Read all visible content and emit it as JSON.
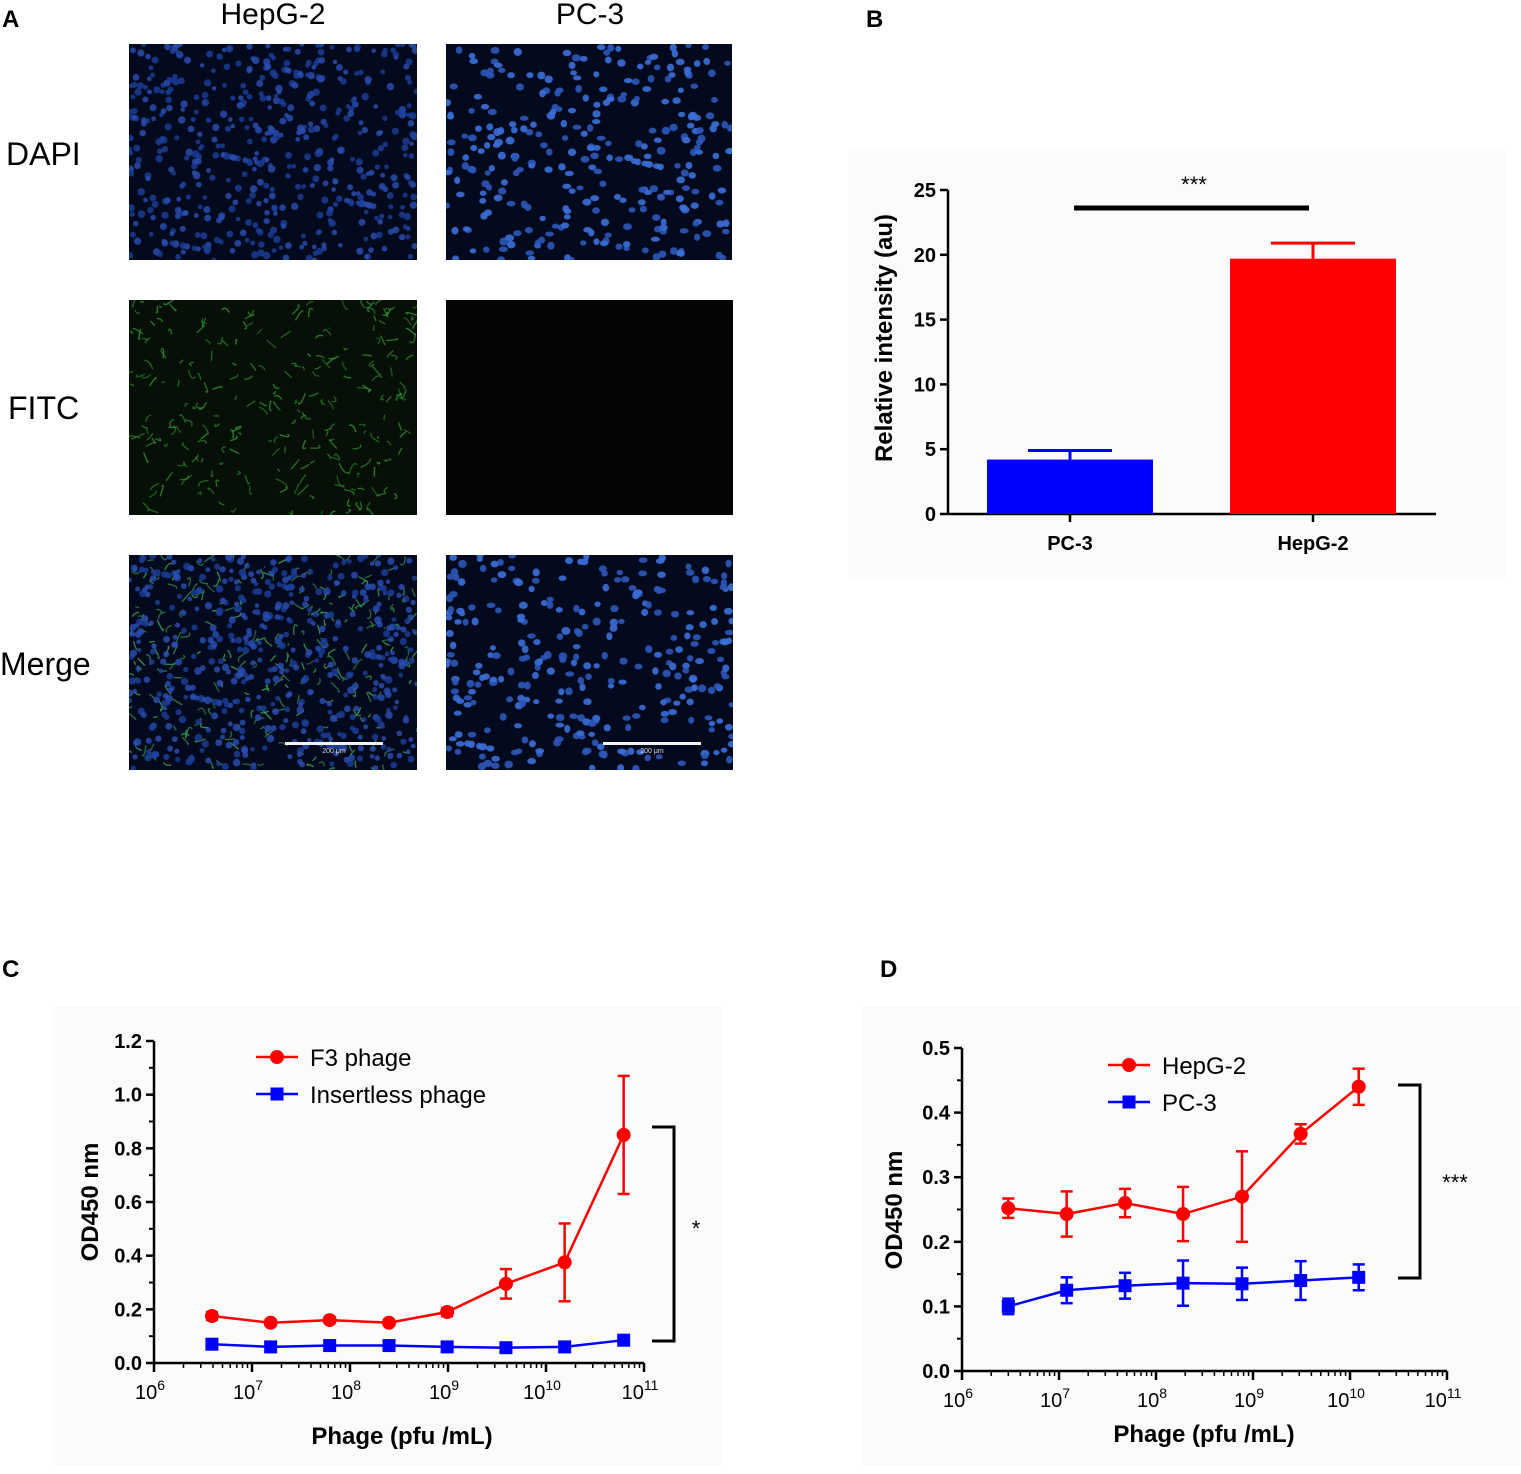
{
  "panels": {
    "a": {
      "letter": "A",
      "columns": [
        "HepG-2",
        "PC-3"
      ],
      "rows": [
        "DAPI",
        "FITC",
        "Merge"
      ],
      "scale_bar_text": "200 μm"
    },
    "b": {
      "letter": "B"
    },
    "c": {
      "letter": "C"
    },
    "d": {
      "letter": "D"
    }
  },
  "colors": {
    "red": "#ff0000",
    "blue": "#0000ff",
    "dapi": "#1b3f9a",
    "fitc": "#2f8f2f"
  },
  "chart_data": [
    {
      "id": "B",
      "type": "bar",
      "categories": [
        "PC-3",
        "HepG-2"
      ],
      "values": [
        4.2,
        19.7
      ],
      "errors": [
        0.7,
        1.2
      ],
      "colors": [
        "#0000ff",
        "#ff0000"
      ],
      "ylabel": "Relative intensity (au)",
      "ylim": [
        0,
        25
      ],
      "yticks": [
        0,
        5,
        10,
        15,
        20,
        25
      ],
      "significance": "***"
    },
    {
      "id": "C",
      "type": "line",
      "xscale": "log",
      "xlabel": "Phage (pfu /mL)",
      "ylabel": "OD450 nm",
      "xticks": [
        "10^6",
        "10^7",
        "10^8",
        "10^9",
        "10^10",
        "10^11"
      ],
      "ylim": [
        0,
        1.2
      ],
      "yticks": [
        "0.0",
        "0.2",
        "0.4",
        "0.6",
        "0.8",
        "1.0",
        "1.2"
      ],
      "legend_position": "top-left",
      "significance": "*",
      "series": [
        {
          "name": "F3 phage",
          "marker": "circle",
          "color": "#ff0000",
          "x": [
            3900000.0,
            15500000.0,
            62000000.0,
            250000000.0,
            980000000.0,
            3900000000.0,
            15500000000.0,
            62000000000.0
          ],
          "y": [
            0.175,
            0.15,
            0.16,
            0.15,
            0.19,
            0.295,
            0.375,
            0.85
          ],
          "err": [
            0.015,
            0.01,
            0.01,
            0.01,
            0.015,
            0.055,
            0.145,
            0.22
          ]
        },
        {
          "name": "Insertless phage",
          "marker": "square",
          "color": "#0000ff",
          "x": [
            3900000.0,
            15500000.0,
            62000000.0,
            250000000.0,
            980000000.0,
            3900000000.0,
            15500000000.0,
            62000000000.0
          ],
          "y": [
            0.07,
            0.06,
            0.065,
            0.065,
            0.06,
            0.057,
            0.06,
            0.085
          ],
          "err": [
            0.01,
            0.008,
            0.008,
            0.008,
            0.008,
            0.008,
            0.01,
            0.015
          ]
        }
      ]
    },
    {
      "id": "D",
      "type": "line",
      "xscale": "log",
      "xlabel": "Phage (pfu /mL)",
      "ylabel": "OD450 nm",
      "xticks": [
        "10^6",
        "10^7",
        "10^8",
        "10^9",
        "10^10",
        "10^11"
      ],
      "ylim": [
        0,
        0.5
      ],
      "yticks": [
        "0.0",
        "0.1",
        "0.2",
        "0.3",
        "0.4",
        "0.5"
      ],
      "legend_position": "top-left",
      "significance": "***",
      "series": [
        {
          "name": "HepG-2",
          "marker": "circle",
          "color": "#ff0000",
          "x": [
            3000000.0,
            12000000.0,
            48000000.0,
            190000000.0,
            770000000.0,
            3100000000.0,
            12300000000.0
          ],
          "y": [
            0.252,
            0.243,
            0.26,
            0.243,
            0.27,
            0.367,
            0.44
          ],
          "err": [
            0.015,
            0.035,
            0.022,
            0.042,
            0.07,
            0.015,
            0.028
          ]
        },
        {
          "name": "PC-3",
          "marker": "square",
          "color": "#0000ff",
          "x": [
            3000000.0,
            12000000.0,
            48000000.0,
            190000000.0,
            770000000.0,
            3100000000.0,
            12300000000.0
          ],
          "y": [
            0.1,
            0.125,
            0.132,
            0.136,
            0.135,
            0.14,
            0.145
          ],
          "err": [
            0.012,
            0.02,
            0.02,
            0.035,
            0.025,
            0.03,
            0.02
          ]
        }
      ]
    }
  ]
}
